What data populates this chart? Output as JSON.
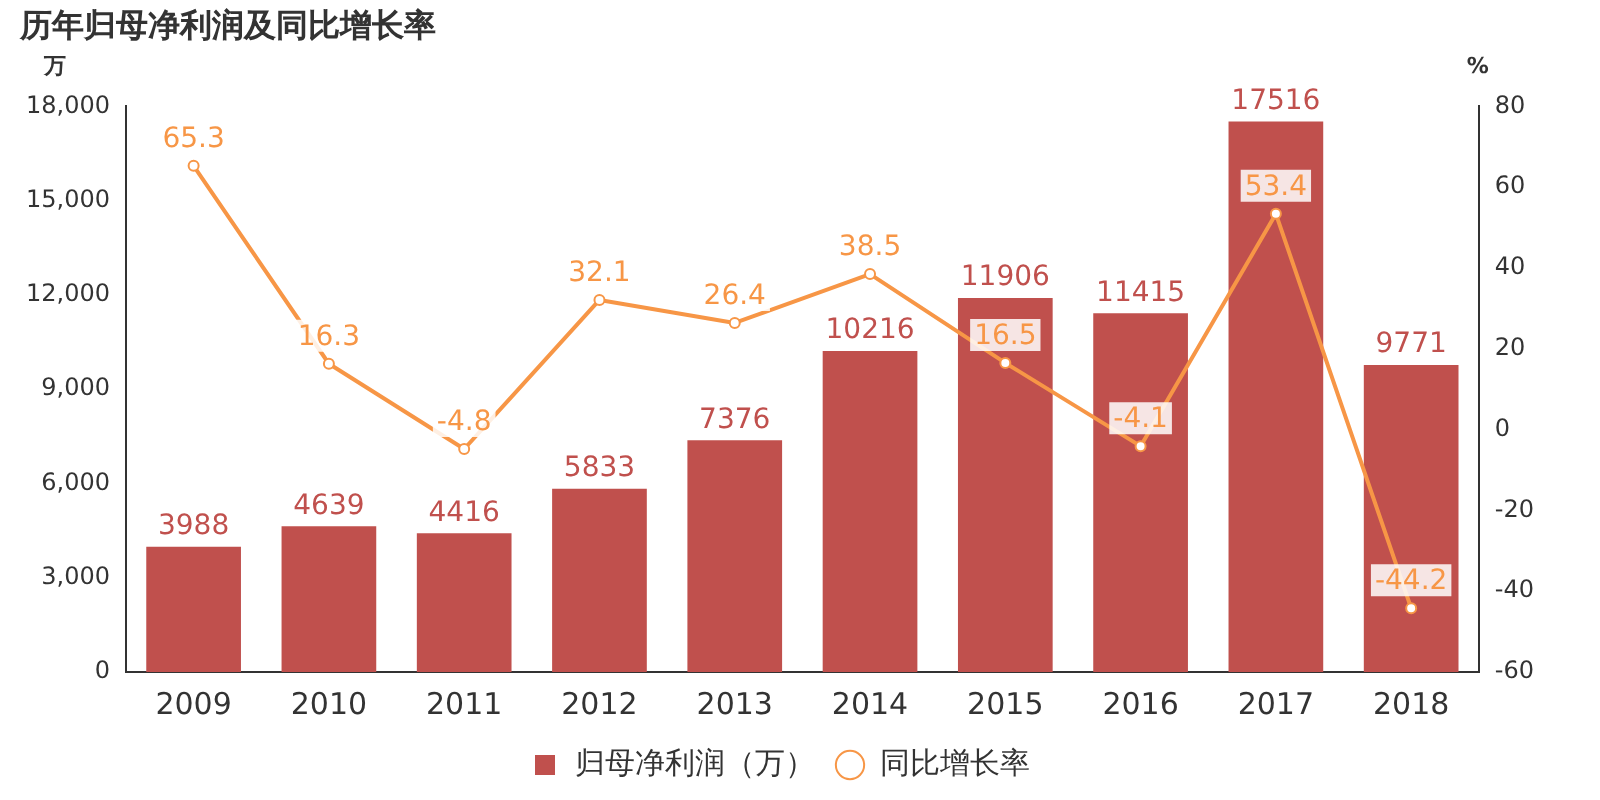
{
  "chart_data": {
    "type": "bar",
    "title": "历年归母净利润及同比增长率",
    "ylabel": "万",
    "y2label": "%",
    "categories": [
      "2009",
      "2010",
      "2011",
      "2012",
      "2013",
      "2014",
      "2015",
      "2016",
      "2017",
      "2018"
    ],
    "series": [
      {
        "name": "归母净利润（万）",
        "color": "#c0504d",
        "values": [
          3988,
          4639,
          4416,
          5833,
          7376,
          10216,
          11906,
          11415,
          17516,
          9771
        ]
      },
      {
        "name": "同比增长率",
        "type": "line",
        "axis": "y2",
        "color": "#f79646",
        "values": [
          65.3,
          16.3,
          -4.8,
          32.1,
          26.4,
          38.5,
          16.5,
          -4.1,
          53.4,
          -44.2
        ]
      }
    ],
    "ylim": [
      0,
      18000
    ],
    "yticks": [
      0,
      {
        "value": 3000,
        "label": "3,000"
      },
      {
        "value": 6000,
        "label": "6,000"
      },
      {
        "value": 9000,
        "label": "9,000"
      },
      {
        "value": 12000,
        "label": "12,000"
      },
      {
        "value": 15000,
        "label": "15,000"
      },
      {
        "value": 18000,
        "label": "18,000"
      }
    ],
    "y2lim": [
      -60,
      80
    ],
    "y2ticks": [
      -60,
      -40,
      -20,
      0,
      20,
      40,
      60,
      80
    ],
    "data_labels": true,
    "marker": "circle",
    "grid": false,
    "legend": "bottom"
  }
}
